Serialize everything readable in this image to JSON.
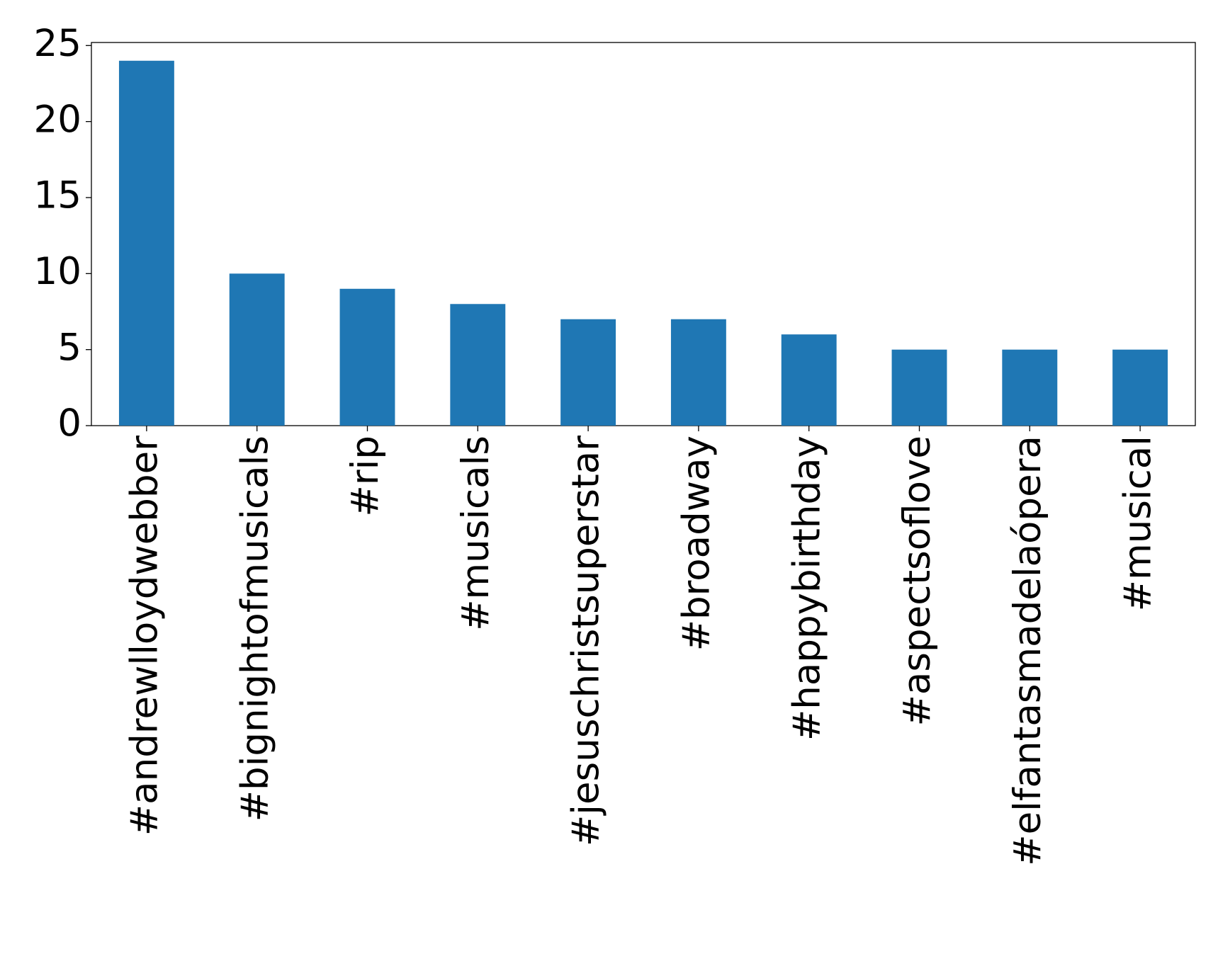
{
  "chart_data": {
    "type": "bar",
    "categories": [
      "#andrewlloydwebber",
      "#bignightofmusicals",
      "#rip",
      "#musicals",
      "#jesuschristsuperstar",
      "#broadway",
      "#happybirthday",
      "#aspectsoflove",
      "#elfantasmadelaópera",
      "#musical"
    ],
    "values": [
      24,
      10,
      9,
      8,
      7,
      7,
      6,
      5,
      5,
      5
    ],
    "color": "#1f77b4",
    "ylim": [
      0,
      25.2
    ],
    "yticks": [
      0,
      5,
      10,
      15,
      20,
      25
    ],
    "grid": false
  }
}
